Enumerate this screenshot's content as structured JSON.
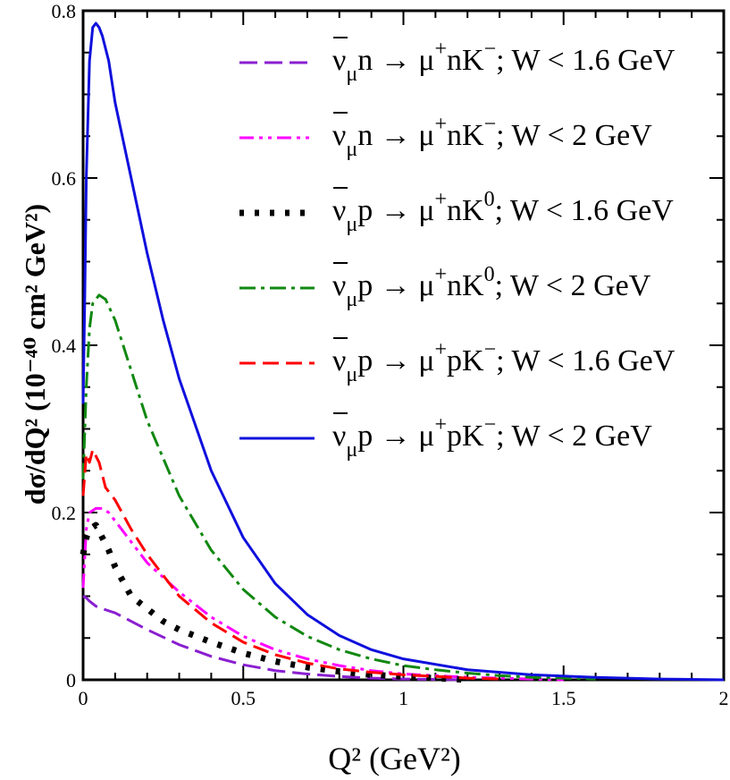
{
  "chart_data": {
    "type": "line",
    "title": "",
    "xlabel": "Q² (GeV²)",
    "ylabel": "dσ/dQ² (10⁻⁴⁰ cm² GeV²)",
    "xlim": [
      0,
      2
    ],
    "ylim": [
      0,
      0.8
    ],
    "x_ticks": [
      0,
      0.5,
      1,
      1.5,
      2
    ],
    "x_tick_labels": [
      "0",
      "0.5",
      "1",
      "1.5",
      "2"
    ],
    "y_ticks": [
      0,
      0.2,
      0.4,
      0.6,
      0.8
    ],
    "y_tick_labels": [
      "0",
      "0.2",
      "0.4",
      "0.6",
      "0.8"
    ],
    "grid": false,
    "legend_position": "top-right",
    "series": [
      {
        "name": "ν̄μ n → μ⁺ n K⁻; W < 1.6 GeV",
        "legend_lhs": "ν",
        "legend_sub": "μ",
        "legend_rhs_1": "n → μ",
        "legend_sup_1": "+",
        "legend_rhs_2": "nK",
        "legend_sup_2": "−",
        "legend_tail": "; W < 1.6 GeV",
        "color": "#8a1fd1",
        "dash": "20,8",
        "stroke_width": 3,
        "x": [
          0.0,
          0.01,
          0.02,
          0.04,
          0.06,
          0.1,
          0.15,
          0.2,
          0.3,
          0.4,
          0.5,
          0.6,
          0.7,
          0.8,
          0.9,
          1.0,
          1.2
        ],
        "y": [
          0.1,
          0.098,
          0.094,
          0.088,
          0.085,
          0.08,
          0.07,
          0.06,
          0.042,
          0.028,
          0.018,
          0.011,
          0.007,
          0.004,
          0.002,
          0.001,
          0.0
        ]
      },
      {
        "name": "ν̄μ n → μ⁺ n K⁻; W < 2 GeV",
        "legend_lhs": "ν",
        "legend_sub": "μ",
        "legend_rhs_1": "n → μ",
        "legend_sup_1": "+",
        "legend_rhs_2": "nK",
        "legend_sup_2": "−",
        "legend_tail": "; W < 2 GeV",
        "color": "#ff00ff",
        "dash": "16,6,4,6,4,6",
        "stroke_width": 3,
        "x": [
          0.0,
          0.01,
          0.02,
          0.04,
          0.06,
          0.08,
          0.1,
          0.15,
          0.2,
          0.3,
          0.4,
          0.5,
          0.6,
          0.7,
          0.8,
          0.9,
          1.0,
          1.1,
          1.2,
          1.3,
          1.4,
          1.5
        ],
        "y": [
          0.11,
          0.18,
          0.2,
          0.205,
          0.205,
          0.2,
          0.19,
          0.165,
          0.14,
          0.105,
          0.075,
          0.052,
          0.036,
          0.025,
          0.017,
          0.011,
          0.007,
          0.005,
          0.003,
          0.002,
          0.001,
          0.0
        ]
      },
      {
        "name": "ν̄μ p → μ⁺ n K̄⁰; W < 1.6 GeV",
        "legend_lhs": "ν",
        "legend_sub": "μ",
        "legend_rhs_1": "p → μ",
        "legend_sup_1": "+",
        "legend_rhs_2": "nK",
        "legend_sup_2": "0",
        "legend_tail": "; W < 1.6 GeV",
        "color": "#000000",
        "dash": "5,12",
        "stroke_width": 7,
        "x": [
          0.0,
          0.01,
          0.02,
          0.04,
          0.06,
          0.08,
          0.1,
          0.15,
          0.2,
          0.25,
          0.3,
          0.4,
          0.5,
          0.6,
          0.7,
          0.8,
          0.9,
          1.0,
          1.1,
          1.2
        ],
        "y": [
          0.15,
          0.17,
          0.18,
          0.185,
          0.17,
          0.155,
          0.135,
          0.1,
          0.085,
          0.07,
          0.06,
          0.045,
          0.032,
          0.022,
          0.015,
          0.01,
          0.006,
          0.004,
          0.002,
          0.0
        ]
      },
      {
        "name": "ν̄μ p → μ⁺ n K̄⁰; W < 2 GeV",
        "legend_lhs": "ν",
        "legend_sub": "μ",
        "legend_rhs_1": "p → μ",
        "legend_sup_1": "+",
        "legend_rhs_2": "nK",
        "legend_sup_2": "0",
        "legend_tail": "; W < 2 GeV",
        "color": "#118811",
        "dash": "18,6,4,6",
        "stroke_width": 3,
        "x": [
          0.0,
          0.01,
          0.02,
          0.03,
          0.05,
          0.07,
          0.1,
          0.15,
          0.2,
          0.3,
          0.4,
          0.5,
          0.6,
          0.7,
          0.8,
          0.9,
          1.0,
          1.1,
          1.2,
          1.3,
          1.4,
          1.5,
          1.6
        ],
        "y": [
          0.24,
          0.35,
          0.42,
          0.45,
          0.46,
          0.455,
          0.43,
          0.37,
          0.31,
          0.22,
          0.155,
          0.108,
          0.075,
          0.052,
          0.036,
          0.025,
          0.017,
          0.012,
          0.008,
          0.005,
          0.003,
          0.002,
          0.001
        ]
      },
      {
        "name": "ν̄μ p → μ⁺ p K⁻; W < 1.6 GeV",
        "legend_lhs": "ν",
        "legend_sub": "μ",
        "legend_rhs_1": "p → μ",
        "legend_sup_1": "+",
        "legend_rhs_2": "pK",
        "legend_sup_2": "−",
        "legend_tail": "; W < 1.6 GeV",
        "color": "#ff0000",
        "dash": "18,8",
        "stroke_width": 3,
        "x": [
          0.0,
          0.01,
          0.02,
          0.03,
          0.05,
          0.07,
          0.1,
          0.15,
          0.2,
          0.25,
          0.3,
          0.4,
          0.5,
          0.6,
          0.7,
          0.8,
          0.9,
          1.0,
          1.1,
          1.2,
          1.3
        ],
        "y": [
          0.22,
          0.27,
          0.26,
          0.275,
          0.26,
          0.23,
          0.215,
          0.18,
          0.15,
          0.125,
          0.1,
          0.068,
          0.045,
          0.03,
          0.02,
          0.013,
          0.009,
          0.006,
          0.004,
          0.002,
          0.001
        ]
      },
      {
        "name": "ν̄μ p → μ⁺ p K⁻; W < 2 GeV",
        "legend_lhs": "ν",
        "legend_sub": "μ",
        "legend_rhs_1": "p → μ",
        "legend_sup_1": "+",
        "legend_rhs_2": "pK",
        "legend_sup_2": "−",
        "legend_tail": "; W < 2 GeV",
        "color": "#1010dd",
        "dash": "",
        "stroke_width": 3,
        "x": [
          0.0,
          0.005,
          0.01,
          0.02,
          0.03,
          0.04,
          0.05,
          0.06,
          0.08,
          0.1,
          0.15,
          0.2,
          0.25,
          0.3,
          0.4,
          0.5,
          0.6,
          0.7,
          0.8,
          0.9,
          1.0,
          1.2,
          1.4,
          1.6,
          1.8,
          2.0
        ],
        "y": [
          0.33,
          0.45,
          0.6,
          0.74,
          0.78,
          0.785,
          0.78,
          0.77,
          0.74,
          0.69,
          0.6,
          0.51,
          0.43,
          0.36,
          0.25,
          0.17,
          0.115,
          0.078,
          0.053,
          0.036,
          0.025,
          0.012,
          0.006,
          0.003,
          0.001,
          0.0
        ]
      }
    ]
  }
}
